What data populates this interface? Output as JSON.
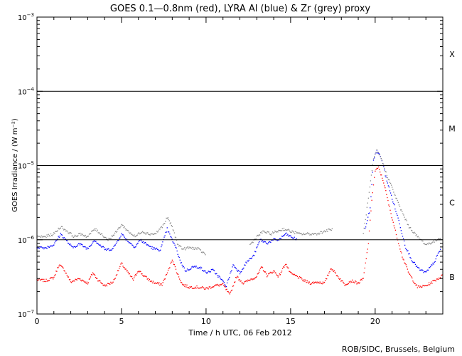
{
  "chart_data": {
    "type": "scatter",
    "title": "GOES 0.1—0.8nm (red), LYRA Al (blue) & Zr (grey) proxy",
    "xlabel": "Time / h UTC, 06 Feb 2012",
    "ylabel": "GOES Irradiance / (W m⁻²)",
    "yscale": "log",
    "xlim": [
      0,
      24
    ],
    "ylim": [
      1e-07,
      0.001
    ],
    "x_ticks": [
      0,
      5,
      10,
      15,
      20
    ],
    "x_tick_labels": [
      "0",
      "5",
      "10",
      "15",
      "20"
    ],
    "y_ticks": [
      {
        "base": "10",
        "exp": "−7",
        "value": 1e-07
      },
      {
        "base": "10",
        "exp": "−6",
        "value": 1e-06
      },
      {
        "base": "10",
        "exp": "−5",
        "value": 1e-05
      },
      {
        "base": "10",
        "exp": "−4",
        "value": 0.0001
      },
      {
        "base": "10",
        "exp": "−3",
        "value": 0.001
      }
    ],
    "flare_classes": [
      {
        "label": "B",
        "value": 3.16e-07
      },
      {
        "label": "C",
        "value": 3.16e-06
      },
      {
        "label": "M",
        "value": 3.16e-05
      },
      {
        "label": "X",
        "value": 0.000316
      }
    ],
    "threshold_lines": [
      1e-06,
      1e-05,
      0.0001
    ],
    "series": [
      {
        "name": "GOES 0.1-0.8nm",
        "color": "#ff0000",
        "points": [
          [
            0.0,
            2.9e-07
          ],
          [
            0.5,
            2.8e-07
          ],
          [
            1.0,
            3.1e-07
          ],
          [
            1.3,
            4.6e-07
          ],
          [
            1.6,
            4e-07
          ],
          [
            2.0,
            2.7e-07
          ],
          [
            2.5,
            3e-07
          ],
          [
            3.0,
            2.6e-07
          ],
          [
            3.3,
            3.6e-07
          ],
          [
            3.6,
            2.9e-07
          ],
          [
            4.0,
            2.4e-07
          ],
          [
            4.5,
            2.7e-07
          ],
          [
            5.0,
            4.8e-07
          ],
          [
            5.3,
            3.8e-07
          ],
          [
            5.7,
            2.9e-07
          ],
          [
            6.0,
            3.9e-07
          ],
          [
            6.3,
            3.3e-07
          ],
          [
            6.7,
            2.8e-07
          ],
          [
            7.0,
            2.6e-07
          ],
          [
            7.4,
            2.5e-07
          ],
          [
            7.8,
            4e-07
          ],
          [
            8.0,
            5.5e-07
          ],
          [
            8.3,
            3.5e-07
          ],
          [
            8.6,
            2.5e-07
          ],
          [
            9.0,
            2.3e-07
          ],
          [
            9.5,
            2.3e-07
          ],
          [
            10.0,
            2.2e-07
          ],
          [
            10.5,
            2.4e-07
          ],
          [
            11.0,
            2.5e-07
          ],
          [
            11.4,
            1.8e-07
          ],
          [
            11.8,
            3.2e-07
          ],
          [
            12.2,
            2.6e-07
          ],
          [
            12.6,
            2.9e-07
          ],
          [
            13.0,
            3.2e-07
          ],
          [
            13.3,
            4.3e-07
          ],
          [
            13.6,
            3.3e-07
          ],
          [
            14.0,
            3.8e-07
          ],
          [
            14.3,
            3.2e-07
          ],
          [
            14.7,
            4.8e-07
          ],
          [
            15.0,
            3.5e-07
          ],
          [
            15.4,
            3.2e-07
          ],
          [
            15.8,
            2.8e-07
          ],
          [
            16.2,
            2.6e-07
          ],
          [
            16.6,
            2.7e-07
          ],
          [
            17.0,
            2.6e-07
          ],
          [
            17.4,
            4.2e-07
          ],
          [
            17.8,
            3.2e-07
          ],
          [
            18.2,
            2.5e-07
          ],
          [
            18.6,
            2.8e-07
          ],
          [
            19.0,
            2.6e-07
          ],
          [
            19.3,
            3e-07
          ],
          [
            19.6,
            9e-07
          ],
          [
            19.8,
            3.5e-06
          ],
          [
            20.0,
            8.5e-06
          ],
          [
            20.2,
            9.3e-06
          ],
          [
            20.5,
            6e-06
          ],
          [
            20.8,
            3e-06
          ],
          [
            21.2,
            1.3e-06
          ],
          [
            21.6,
            6e-07
          ],
          [
            22.0,
            3.5e-07
          ],
          [
            22.5,
            2.3e-07
          ],
          [
            23.0,
            2.4e-07
          ],
          [
            23.5,
            2.8e-07
          ],
          [
            24.0,
            3.3e-07
          ]
        ]
      },
      {
        "name": "LYRA Al proxy",
        "color": "#0000ff",
        "points": [
          [
            0.0,
            8e-07
          ],
          [
            0.5,
            7.8e-07
          ],
          [
            1.0,
            8.6e-07
          ],
          [
            1.4,
            1.2e-06
          ],
          [
            1.7,
            1e-06
          ],
          [
            2.1,
            7.8e-07
          ],
          [
            2.5,
            8.8e-07
          ],
          [
            3.0,
            7.6e-07
          ],
          [
            3.4,
            1e-06
          ],
          [
            3.7,
            8.5e-07
          ],
          [
            4.1,
            7.3e-07
          ],
          [
            4.5,
            7.6e-07
          ],
          [
            5.0,
            1.2e-06
          ],
          [
            5.4,
            9.5e-07
          ],
          [
            5.8,
            8e-07
          ],
          [
            6.1,
            1e-06
          ],
          [
            6.5,
            8.6e-07
          ],
          [
            6.9,
            7.6e-07
          ],
          [
            7.3,
            7.3e-07
          ],
          [
            7.7,
            1.4e-06
          ],
          [
            7.9,
            1.1e-06
          ],
          [
            8.2,
            8e-07
          ],
          [
            8.5,
            5e-07
          ],
          [
            8.8,
            3.8e-07
          ],
          [
            9.2,
            4.3e-07
          ],
          [
            9.6,
            4.3e-07
          ],
          [
            10.0,
            3.6e-07
          ],
          [
            10.4,
            3.9e-07
          ],
          [
            10.8,
            3.1e-07
          ],
          [
            11.2,
            2.4e-07
          ],
          [
            11.6,
            4.6e-07
          ],
          [
            12.0,
            3.6e-07
          ],
          [
            12.4,
            5e-07
          ],
          [
            12.8,
            6e-07
          ],
          [
            13.2,
            1e-06
          ],
          [
            13.6,
            9e-07
          ],
          [
            14.0,
            1e-06
          ],
          [
            14.3,
            1e-06
          ],
          [
            14.7,
            1.2e-06
          ],
          [
            15.0,
            1.1e-06
          ],
          [
            15.4,
            1e-06
          ],
          [
            19.4,
            1.4e-06
          ],
          [
            19.7,
            2.6e-06
          ],
          [
            19.9,
            1.2e-05
          ],
          [
            20.1,
            1.6e-05
          ],
          [
            20.4,
            1.2e-05
          ],
          [
            20.6,
            7.5e-06
          ],
          [
            21.0,
            3.6e-06
          ],
          [
            21.4,
            1.8e-06
          ],
          [
            21.8,
            8e-07
          ],
          [
            22.2,
            5.2e-07
          ],
          [
            22.6,
            4e-07
          ],
          [
            23.0,
            3.6e-07
          ],
          [
            23.5,
            5e-07
          ],
          [
            23.9,
            7.8e-07
          ]
        ]
      },
      {
        "name": "LYRA Zr proxy",
        "color": "#888888",
        "points": [
          [
            0.0,
            1.1e-06
          ],
          [
            0.5,
            1.1e-06
          ],
          [
            1.0,
            1.2e-06
          ],
          [
            1.4,
            1.5e-06
          ],
          [
            1.8,
            1.3e-06
          ],
          [
            2.2,
            1.1e-06
          ],
          [
            2.6,
            1.2e-06
          ],
          [
            3.0,
            1.1e-06
          ],
          [
            3.4,
            1.4e-06
          ],
          [
            3.8,
            1.2e-06
          ],
          [
            4.2,
            1e-06
          ],
          [
            4.6,
            1.2e-06
          ],
          [
            5.0,
            1.6e-06
          ],
          [
            5.4,
            1.3e-06
          ],
          [
            5.8,
            1.1e-06
          ],
          [
            6.2,
            1.3e-06
          ],
          [
            6.6,
            1.2e-06
          ],
          [
            7.0,
            1.2e-06
          ],
          [
            7.5,
            1.6e-06
          ],
          [
            7.7,
            2e-06
          ],
          [
            8.0,
            1.5e-06
          ],
          [
            8.3,
            9e-07
          ],
          [
            8.6,
            7.5e-07
          ],
          [
            9.0,
            7.8e-07
          ],
          [
            9.5,
            7.6e-07
          ],
          [
            10.0,
            6.3e-07
          ],
          [
            12.6,
            8.5e-07
          ],
          [
            13.0,
            1.1e-06
          ],
          [
            13.4,
            1.3e-06
          ],
          [
            13.8,
            1.2e-06
          ],
          [
            14.2,
            1.3e-06
          ],
          [
            14.6,
            1.4e-06
          ],
          [
            15.0,
            1.3e-06
          ],
          [
            15.5,
            1.2e-06
          ],
          [
            16.0,
            1.2e-06
          ],
          [
            16.5,
            1.2e-06
          ],
          [
            17.0,
            1.3e-06
          ],
          [
            17.5,
            1.4e-06
          ],
          [
            19.3,
            1.2e-06
          ],
          [
            19.6,
            3.6e-06
          ],
          [
            19.9,
            1.2e-05
          ],
          [
            20.1,
            1.6e-05
          ],
          [
            20.4,
            1.2e-05
          ],
          [
            20.6,
            8.5e-06
          ],
          [
            21.0,
            5e-06
          ],
          [
            21.5,
            2.6e-06
          ],
          [
            22.0,
            1.5e-06
          ],
          [
            22.5,
            1.1e-06
          ],
          [
            23.0,
            8.6e-07
          ],
          [
            23.5,
            9.5e-07
          ],
          [
            23.9,
            1.1e-06
          ]
        ]
      }
    ],
    "footer_credit": "ROB/SIDC, Brussels, Belgium"
  }
}
